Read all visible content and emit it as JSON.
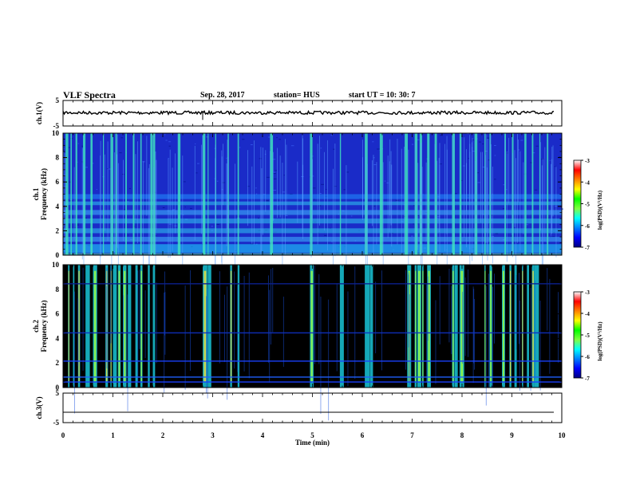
{
  "header": {
    "title": "VLF Spectra",
    "date": "Sep. 28, 2017",
    "station": "station= HUS",
    "start": "start UT = 10: 30: 7"
  },
  "chart_data": {
    "type": "heatmap",
    "xlabel": "Time (min)",
    "x_ticks": [
      "0",
      "1",
      "2",
      "3",
      "4",
      "5",
      "6",
      "7",
      "8",
      "9",
      "10"
    ],
    "xlim": [
      0,
      10
    ],
    "panels": [
      {
        "id": "ch1-wave",
        "ylabel": "ch.1(V)",
        "y_ticks": [
          "5",
          "-5"
        ],
        "ylim": [
          -5,
          5
        ],
        "level": 0.2
      },
      {
        "id": "ch1-spec",
        "ylabel_top": "ch.1",
        "ylabel": "Frequency (kHz)",
        "y_ticks": [
          "0",
          "2",
          "4",
          "6",
          "8",
          "10"
        ],
        "ylim": [
          0,
          10
        ],
        "bg": "#1a2bc8"
      },
      {
        "id": "ch2-spec",
        "ylabel_top": "ch.2",
        "ylabel": "Frequency (kHz)",
        "y_ticks": [
          "0",
          "2",
          "4",
          "6",
          "8",
          "10"
        ],
        "ylim": [
          0,
          10
        ],
        "bg": "#000000"
      },
      {
        "id": "ch3-wave",
        "ylabel": "ch.3(V)",
        "y_ticks": [
          "5",
          "-5"
        ],
        "ylim": [
          -5,
          5
        ],
        "level": -1.5
      }
    ],
    "colorbar": {
      "label": "log(PSD)(V²/Hz)",
      "ticks": [
        "-3",
        "-4",
        "-5",
        "-6",
        "-7"
      ],
      "range": [
        -7,
        -3
      ],
      "colors": [
        "#000080",
        "#0000ff",
        "#0080ff",
        "#00ffff",
        "#80ff40",
        "#00ff00",
        "#ffff00",
        "#ff8000",
        "#ff0000",
        "#ffffff"
      ]
    }
  }
}
